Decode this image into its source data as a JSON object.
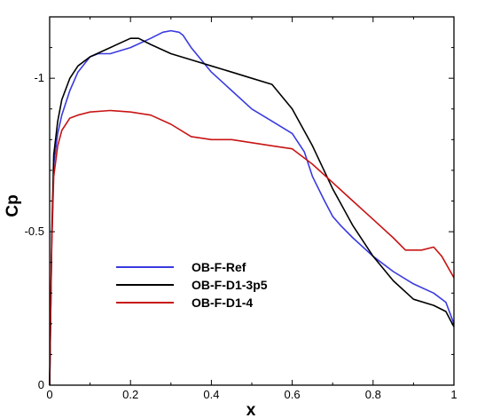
{
  "chart_data": {
    "type": "line",
    "xlabel": "x",
    "ylabel": "Cp",
    "xlim": [
      0,
      1
    ],
    "ylim": [
      0,
      -1.2
    ],
    "y_axis_reversed": true,
    "grid": false,
    "legend_position": "lower-left",
    "x_ticks": [
      {
        "value": 0,
        "label": "0"
      },
      {
        "value": 0.2,
        "label": "0.2"
      },
      {
        "value": 0.4,
        "label": "0.4"
      },
      {
        "value": 0.6,
        "label": "0.6"
      },
      {
        "value": 0.8,
        "label": "0.8"
      },
      {
        "value": 1,
        "label": "1"
      }
    ],
    "y_ticks": [
      {
        "value": 0,
        "label": "0"
      },
      {
        "value": -0.5,
        "label": "-0.5"
      },
      {
        "value": -1,
        "label": "-1"
      }
    ],
    "series": [
      {
        "name": "OB-F-Ref",
        "color": "#3a3ae0",
        "x": [
          0.0,
          0.005,
          0.01,
          0.02,
          0.03,
          0.05,
          0.07,
          0.1,
          0.12,
          0.15,
          0.2,
          0.25,
          0.28,
          0.3,
          0.32,
          0.33,
          0.35,
          0.4,
          0.45,
          0.5,
          0.55,
          0.6,
          0.63,
          0.65,
          0.68,
          0.7,
          0.72,
          0.75,
          0.8,
          0.85,
          0.9,
          0.95,
          0.98,
          1.0
        ],
        "y": [
          0.0,
          -0.45,
          -0.72,
          -0.82,
          -0.88,
          -0.96,
          -1.02,
          -1.07,
          -1.08,
          -1.08,
          -1.1,
          -1.13,
          -1.15,
          -1.155,
          -1.15,
          -1.14,
          -1.1,
          -1.02,
          -0.96,
          -0.9,
          -0.86,
          -0.82,
          -0.76,
          -0.68,
          -0.6,
          -0.55,
          -0.52,
          -0.48,
          -0.42,
          -0.37,
          -0.33,
          -0.3,
          -0.27,
          -0.2
        ]
      },
      {
        "name": "OB-F-D1-3p5",
        "color": "#000000",
        "x": [
          0.0,
          0.005,
          0.01,
          0.02,
          0.03,
          0.05,
          0.07,
          0.1,
          0.15,
          0.2,
          0.22,
          0.25,
          0.3,
          0.35,
          0.4,
          0.45,
          0.5,
          0.55,
          0.6,
          0.65,
          0.7,
          0.75,
          0.8,
          0.85,
          0.9,
          0.95,
          0.98,
          1.0
        ],
        "y": [
          0.0,
          -0.48,
          -0.75,
          -0.86,
          -0.93,
          -1.0,
          -1.04,
          -1.07,
          -1.1,
          -1.13,
          -1.13,
          -1.11,
          -1.08,
          -1.06,
          -1.04,
          -1.02,
          -1.0,
          -0.98,
          -0.9,
          -0.78,
          -0.64,
          -0.52,
          -0.42,
          -0.34,
          -0.28,
          -0.26,
          -0.24,
          -0.19
        ]
      },
      {
        "name": "OB-F-D1-4",
        "color": "#c81414",
        "x": [
          0.0,
          0.005,
          0.01,
          0.02,
          0.03,
          0.05,
          0.07,
          0.1,
          0.15,
          0.2,
          0.25,
          0.3,
          0.35,
          0.4,
          0.45,
          0.5,
          0.55,
          0.6,
          0.65,
          0.7,
          0.75,
          0.8,
          0.85,
          0.88,
          0.92,
          0.95,
          0.97,
          1.0
        ],
        "y": [
          0.0,
          -0.45,
          -0.68,
          -0.78,
          -0.83,
          -0.87,
          -0.88,
          -0.89,
          -0.895,
          -0.89,
          -0.88,
          -0.85,
          -0.81,
          -0.8,
          -0.8,
          -0.79,
          -0.78,
          -0.77,
          -0.72,
          -0.66,
          -0.6,
          -0.54,
          -0.48,
          -0.44,
          -0.44,
          -0.45,
          -0.42,
          -0.35
        ]
      }
    ]
  }
}
